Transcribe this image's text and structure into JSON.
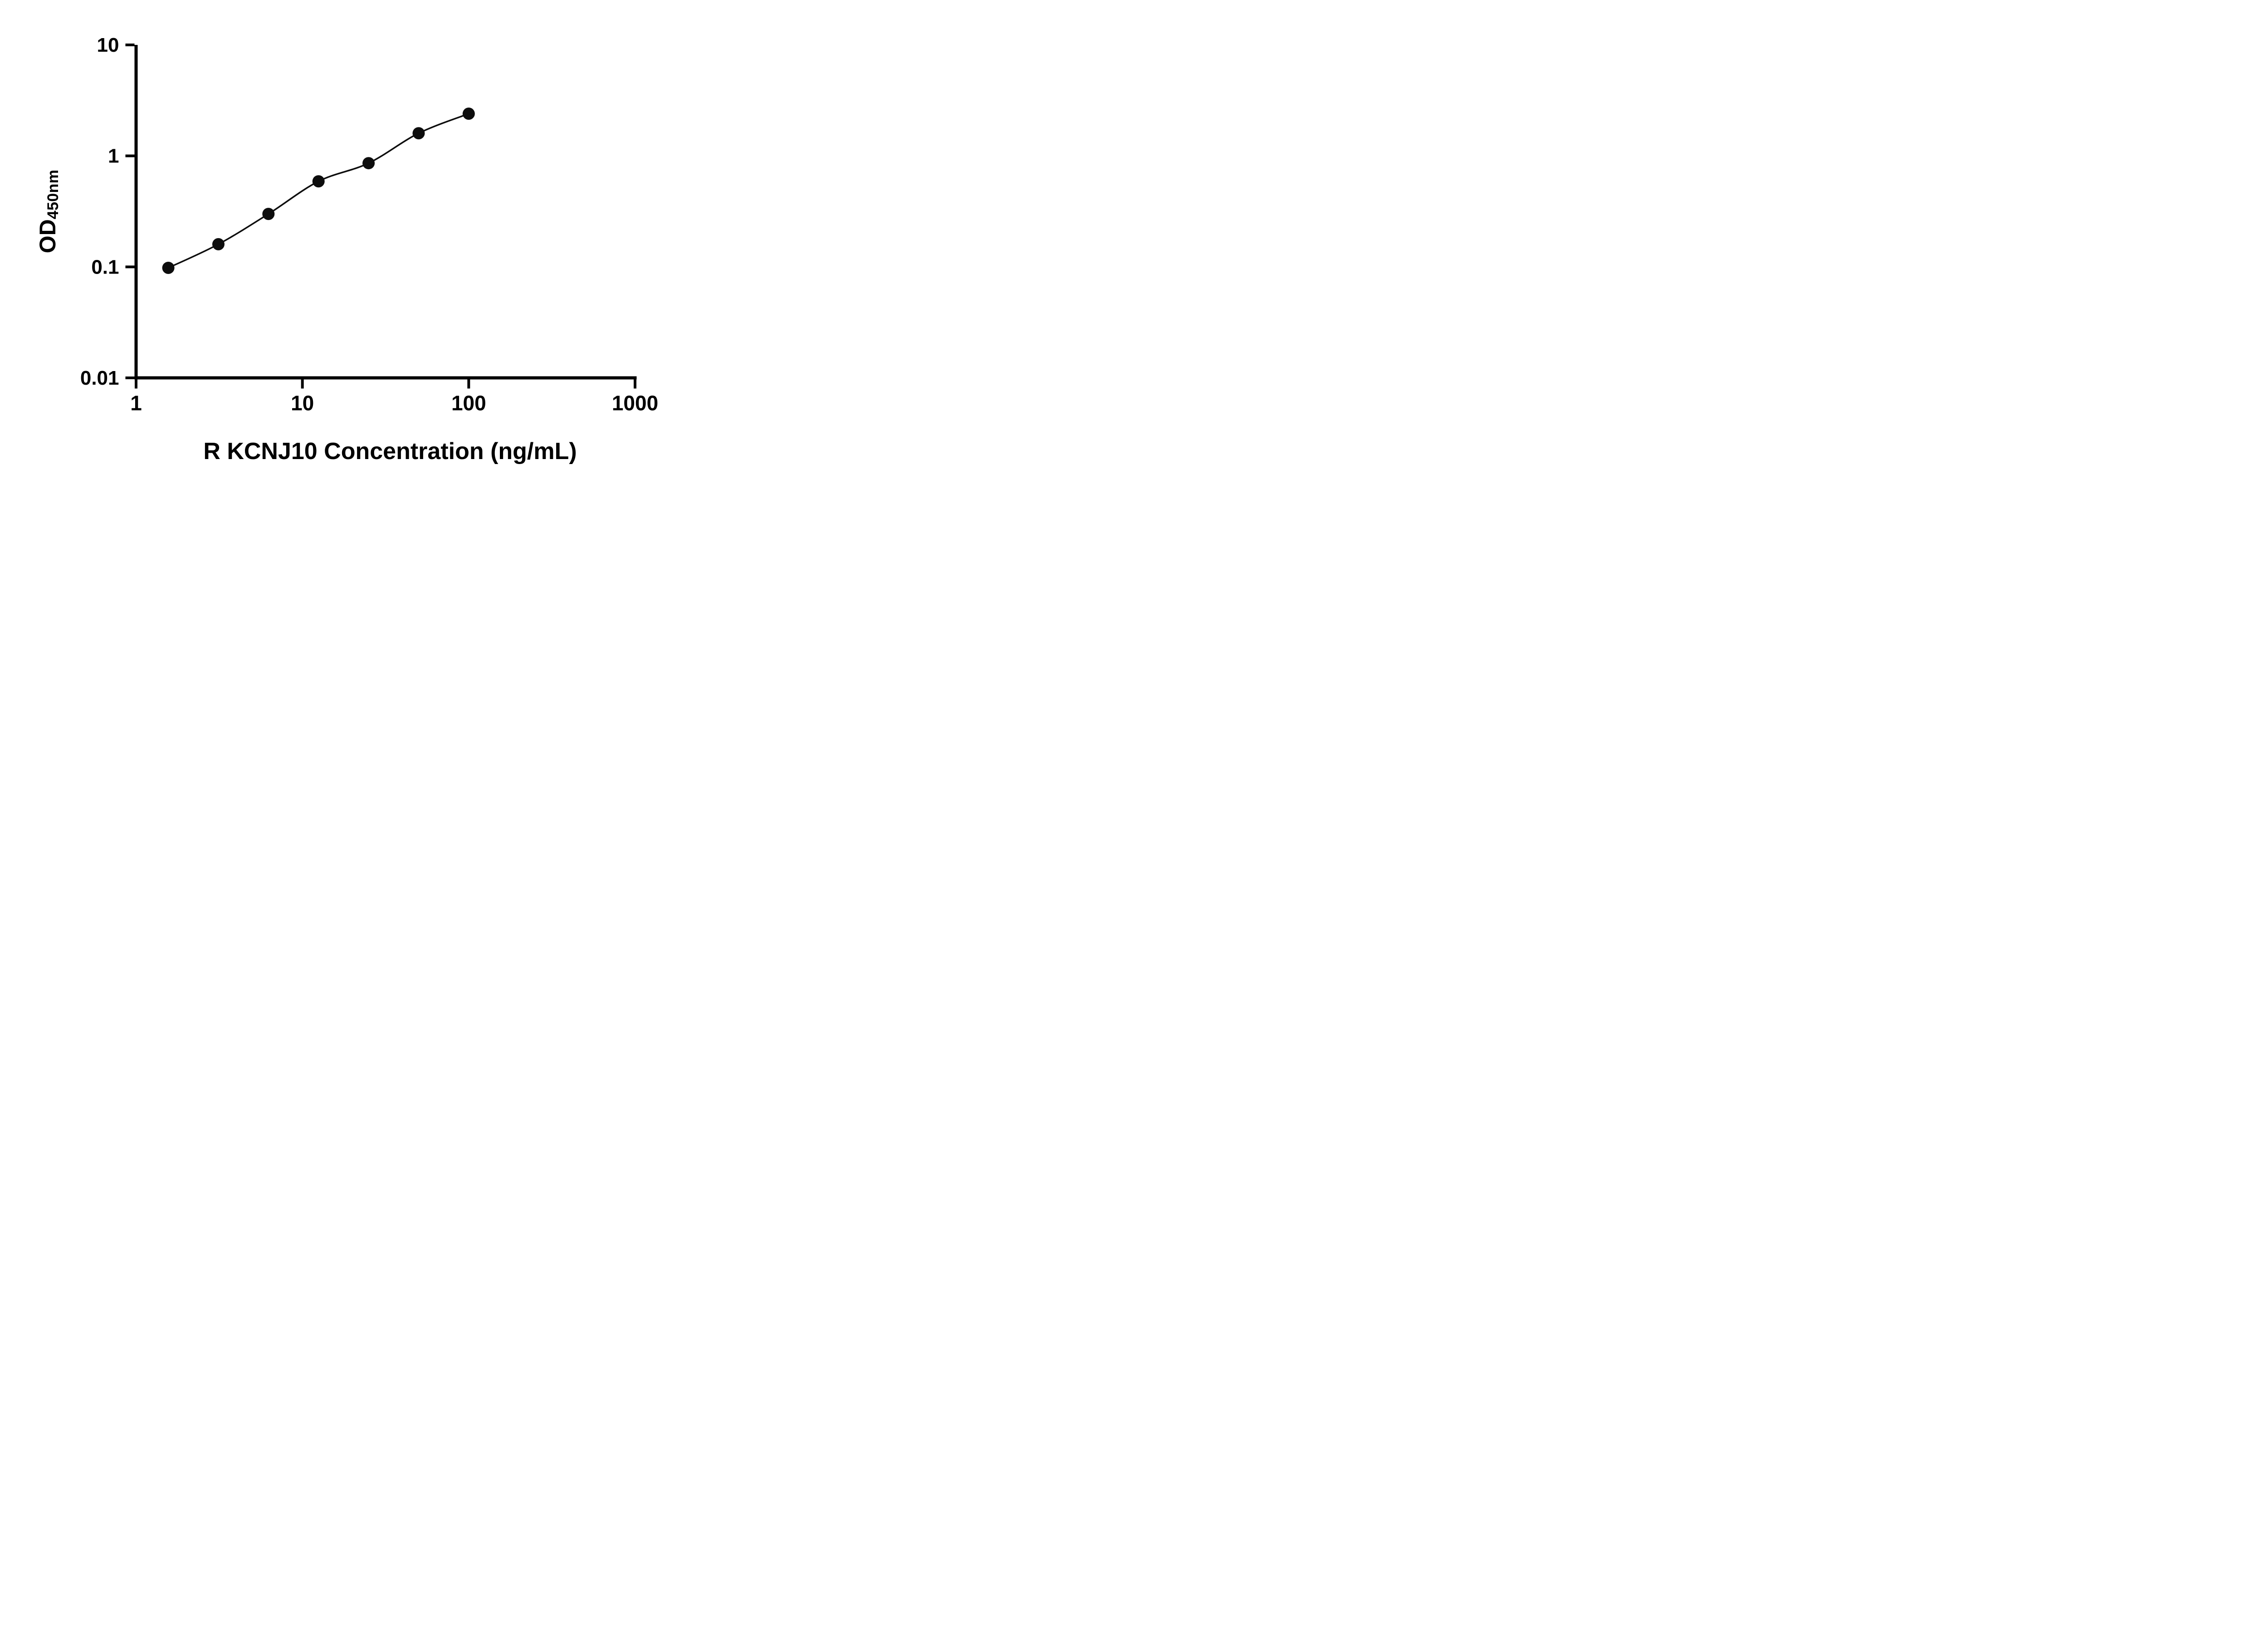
{
  "chart_data": {
    "type": "scatter",
    "title": "",
    "xlabel": "R KCNJ10 Concentration (ng/mL)",
    "ylabel_main": "OD",
    "ylabel_sub": "450nm",
    "xscale": "log",
    "yscale": "log",
    "xlim": [
      1,
      1000
    ],
    "ylim": [
      0.01,
      10
    ],
    "grid": "off",
    "legend": "none",
    "x": [
      1.5625,
      3.125,
      6.25,
      12.5,
      25,
      50,
      100
    ],
    "y": [
      0.098,
      0.16,
      0.3,
      0.59,
      0.86,
      1.6,
      2.4
    ],
    "x_ticks": [
      {
        "value": 1,
        "label": "1"
      },
      {
        "value": 10,
        "label": "10"
      },
      {
        "value": 100,
        "label": "100"
      },
      {
        "value": 1000,
        "label": "1000"
      }
    ],
    "y_ticks": [
      {
        "value": 0.01,
        "label": "0.01"
      },
      {
        "value": 0.1,
        "label": "0.1"
      },
      {
        "value": 1,
        "label": "1"
      },
      {
        "value": 10,
        "label": "10"
      }
    ],
    "marker_color": "#0d0d0d",
    "line_color": "#0d0d0d",
    "axis_color": "#000000"
  }
}
